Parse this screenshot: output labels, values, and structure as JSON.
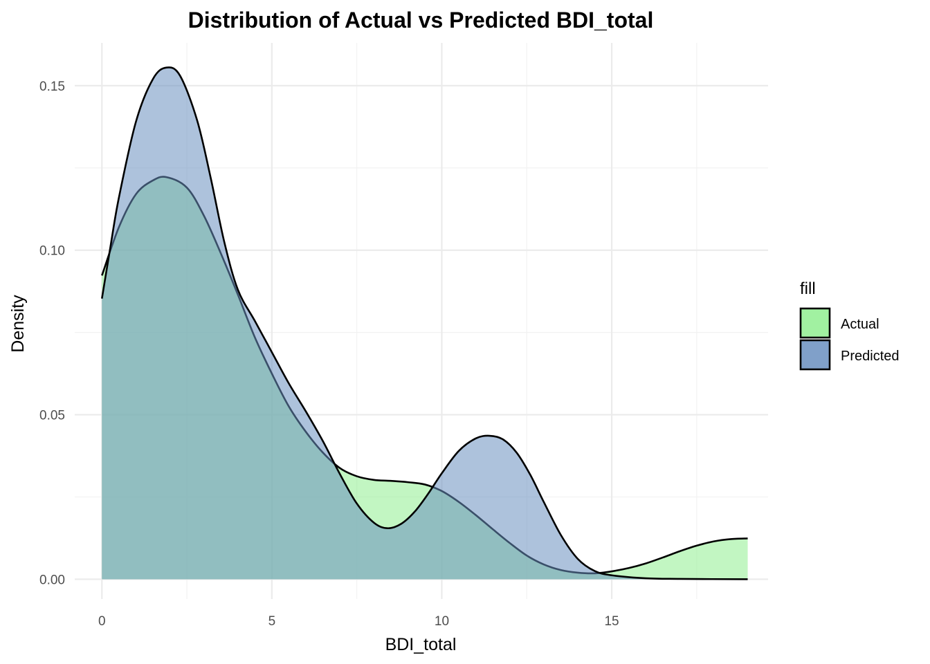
{
  "chart_data": {
    "type": "area",
    "title": "Distribution of Actual vs Predicted BDI_total",
    "xlabel": "BDI_total",
    "ylabel": "Density",
    "xlim": [
      -0.8,
      19.6
    ],
    "ylim": [
      -0.006,
      0.163
    ],
    "x_ticks": [
      0,
      5,
      10,
      15
    ],
    "x_tick_labels": [
      "0",
      "5",
      "10",
      "15"
    ],
    "y_ticks": [
      0.0,
      0.05,
      0.1,
      0.15
    ],
    "y_tick_labels": [
      "0.00",
      "0.05",
      "0.10",
      "0.15"
    ],
    "grid": true,
    "legend": {
      "title": "fill",
      "position": "right"
    },
    "series": [
      {
        "name": "Actual",
        "color": "#90EE90",
        "points": [
          [
            0,
            0.0923
          ],
          [
            0.5,
            0.107
          ],
          [
            1,
            0.117
          ],
          [
            1.5,
            0.1212
          ],
          [
            1.9,
            0.1222
          ],
          [
            2.5,
            0.119
          ],
          [
            3,
            0.1105
          ],
          [
            3.5,
            0.099
          ],
          [
            4,
            0.0865
          ],
          [
            4.5,
            0.0735
          ],
          [
            5,
            0.0625
          ],
          [
            5.5,
            0.0525
          ],
          [
            6,
            0.0448
          ],
          [
            6.5,
            0.0385
          ],
          [
            7,
            0.0338
          ],
          [
            7.5,
            0.0313
          ],
          [
            8,
            0.0302
          ],
          [
            8.5,
            0.0299
          ],
          [
            9,
            0.0295
          ],
          [
            9.5,
            0.0288
          ],
          [
            10,
            0.0268
          ],
          [
            10.5,
            0.0235
          ],
          [
            11,
            0.0195
          ],
          [
            11.5,
            0.0152
          ],
          [
            12,
            0.011
          ],
          [
            12.5,
            0.0072
          ],
          [
            13,
            0.0045
          ],
          [
            13.5,
            0.0028
          ],
          [
            14,
            0.002
          ],
          [
            14.5,
            0.0018
          ],
          [
            15,
            0.0024
          ],
          [
            15.5,
            0.0034
          ],
          [
            16,
            0.0048
          ],
          [
            16.5,
            0.0066
          ],
          [
            17,
            0.0085
          ],
          [
            17.5,
            0.0102
          ],
          [
            18,
            0.0115
          ],
          [
            18.5,
            0.0122
          ],
          [
            19,
            0.0124
          ]
        ]
      },
      {
        "name": "Predicted",
        "color": "#6A8FBF",
        "points": [
          [
            0,
            0.0853
          ],
          [
            0.25,
            0.101
          ],
          [
            0.5,
            0.116
          ],
          [
            1,
            0.139
          ],
          [
            1.5,
            0.152
          ],
          [
            1.9,
            0.1555
          ],
          [
            2.3,
            0.153
          ],
          [
            2.8,
            0.1395
          ],
          [
            3.2,
            0.122
          ],
          [
            3.6,
            0.1025
          ],
          [
            4,
            0.088
          ],
          [
            4.5,
            0.0785
          ],
          [
            5,
            0.069
          ],
          [
            5.5,
            0.0595
          ],
          [
            6,
            0.051
          ],
          [
            6.5,
            0.042
          ],
          [
            7,
            0.032
          ],
          [
            7.5,
            0.023
          ],
          [
            8,
            0.0172
          ],
          [
            8.4,
            0.0155
          ],
          [
            8.8,
            0.0168
          ],
          [
            9.2,
            0.0205
          ],
          [
            9.6,
            0.026
          ],
          [
            10,
            0.0322
          ],
          [
            10.5,
            0.039
          ],
          [
            11,
            0.0428
          ],
          [
            11.4,
            0.0436
          ],
          [
            11.8,
            0.0425
          ],
          [
            12.2,
            0.0385
          ],
          [
            12.6,
            0.0318
          ],
          [
            13,
            0.0235
          ],
          [
            13.5,
            0.0135
          ],
          [
            14,
            0.0062
          ],
          [
            14.5,
            0.0025
          ],
          [
            15,
            0.0012
          ],
          [
            16,
            0.0003
          ],
          [
            17,
            0.0001
          ],
          [
            19,
            0.0
          ]
        ]
      }
    ]
  }
}
